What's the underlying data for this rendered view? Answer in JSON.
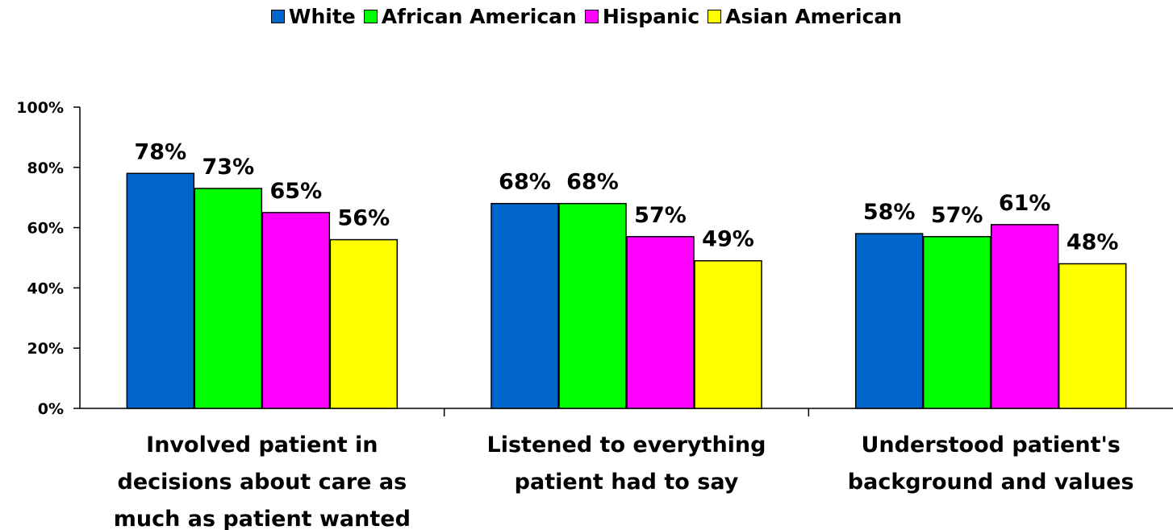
{
  "chart_data": {
    "type": "bar",
    "categories": [
      [
        "Involved patient in",
        "decisions about care as",
        "much as patient wanted"
      ],
      [
        "Listened to everything",
        "patient had to say"
      ],
      [
        "Understood patient's",
        "background and values"
      ]
    ],
    "series": [
      {
        "name": "White",
        "color": "#0066cc",
        "values": [
          78,
          68,
          58
        ],
        "labels": [
          "78%",
          "68%",
          "58%"
        ]
      },
      {
        "name": "African American",
        "color": "#00ff00",
        "values": [
          73,
          68,
          57
        ],
        "labels": [
          "73%",
          "68%",
          "57%"
        ]
      },
      {
        "name": "Hispanic",
        "color": "#ff00ff",
        "values": [
          65,
          57,
          61
        ],
        "labels": [
          "65%",
          "57%",
          "61%"
        ]
      },
      {
        "name": "Asian American",
        "color": "#ffff00",
        "values": [
          56,
          49,
          48
        ],
        "labels": [
          "56%",
          "49%",
          "48%"
        ]
      }
    ],
    "ylim": [
      0,
      100
    ],
    "yticks": [
      0,
      20,
      40,
      60,
      80,
      100
    ],
    "ytick_labels": [
      "0%",
      "20%",
      "40%",
      "60%",
      "80%",
      "100%"
    ],
    "legend_position": "top-center",
    "grid": false
  }
}
